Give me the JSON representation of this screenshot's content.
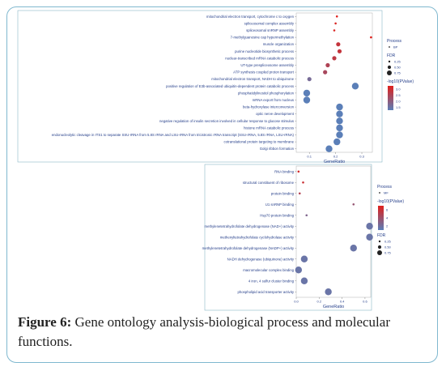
{
  "caption": {
    "label": "Figure 6:",
    "text": "Gene ontology analysis-biological process and molecular functions."
  },
  "chart_data": [
    {
      "type": "scatter",
      "subtype": "dot-plot",
      "panel": "biological-process",
      "xlabel": "GeneRatio",
      "xticks": [
        "0.1",
        "0.2",
        "0.3"
      ],
      "xlim": [
        0.05,
        0.34
      ],
      "terms": [
        {
          "label": "mitochondrial electron transport, cytochrome c to oxygen",
          "ratio": 0.205,
          "size": "small",
          "value": 3.0
        },
        {
          "label": "spliceosomal complex assembly",
          "ratio": 0.2,
          "size": "small",
          "value": 2.9
        },
        {
          "label": "spliceosomal snRNP assembly",
          "ratio": 0.195,
          "size": "small",
          "value": 2.9
        },
        {
          "label": "7-methylguanosine cap hypermethylation",
          "ratio": 0.335,
          "size": "small",
          "value": 3.0
        },
        {
          "label": "muscle organization",
          "ratio": 0.21,
          "size": "medium",
          "value": 2.6
        },
        {
          "label": "purine nucleotide biosynthetic process",
          "ratio": 0.215,
          "size": "medium",
          "value": 2.6
        },
        {
          "label": "nuclear-transcribed mRNA catabolic process",
          "ratio": 0.195,
          "size": "medium",
          "value": 2.5
        },
        {
          "label": "UT-type prespliceosome assembly",
          "ratio": 0.17,
          "size": "medium",
          "value": 2.3
        },
        {
          "label": "ATP synthesis coupled proton transport",
          "ratio": 0.16,
          "size": "medium",
          "value": 2.2
        },
        {
          "label": "mitochondrial electron transport, NADH to ubiquinone",
          "ratio": 0.1,
          "size": "medium",
          "value": 1.5
        },
        {
          "label": "positive regulation of E3b-associated ubiquitin-dependent protein catabolic process",
          "ratio": 0.275,
          "size": "large",
          "value": 1.1
        },
        {
          "label": "phosphatidylinositol phosphorylation",
          "ratio": 0.09,
          "size": "large",
          "value": 1.1
        },
        {
          "label": "mRNA export from nucleus",
          "ratio": 0.09,
          "size": "large",
          "value": 1.1
        },
        {
          "label": "beta-hydroxylase interconversion",
          "ratio": 0.215,
          "size": "large",
          "value": 1.1
        },
        {
          "label": "optic nerve development",
          "ratio": 0.215,
          "size": "large",
          "value": 1.1
        },
        {
          "label": "negative regulation of insulin secretion involved in cellular response to glucose stimulus",
          "ratio": 0.215,
          "size": "large",
          "value": 1.1
        },
        {
          "label": "histone mRNA catabolic process",
          "ratio": 0.215,
          "size": "large",
          "value": 1.1
        },
        {
          "label": "endonucleolytic cleavage in ITS1 to separate SSU-rRNA from 5.8S rRNA and LSU-rRNA from tricistronic rRNA transcript (SSU-rRNA, 5.8S rRNA, LSU-rRNA)",
          "ratio": 0.215,
          "size": "large",
          "value": 1.1
        },
        {
          "label": "cotranslational protein targeting to membrane",
          "ratio": 0.205,
          "size": "large",
          "value": 1.1
        },
        {
          "label": "Golgi ribbon formation",
          "ratio": 0.175,
          "size": "large",
          "value": 1.1
        }
      ],
      "legend": {
        "process_title": "Process",
        "process_item": "BP",
        "fdr_title": "FDR",
        "fdr_items": [
          "0.25",
          "0.50",
          "0.75"
        ],
        "color_title": "-log10(PValue)",
        "color_ticks": [
          "3.0",
          "2.5",
          "2.0",
          "1.5"
        ],
        "color_range": [
          1.1,
          3.0
        ],
        "color_low": "#5b7fb8",
        "color_high": "#e0201b"
      }
    },
    {
      "type": "scatter",
      "subtype": "dot-plot",
      "panel": "molecular-function",
      "xlabel": "GeneRatio",
      "xticks": [
        "0.0",
        "0.2",
        "0.4",
        "0.6"
      ],
      "xlim": [
        0.0,
        0.65
      ],
      "terms": [
        {
          "label": "RNA binding",
          "ratio": 0.02,
          "size": "small",
          "value": 6.0
        },
        {
          "label": "structural constituent of ribosome",
          "ratio": 0.06,
          "size": "small",
          "value": 5.6
        },
        {
          "label": "protein binding",
          "ratio": 0.03,
          "size": "small",
          "value": 4.6
        },
        {
          "label": "U1 snRNP binding",
          "ratio": 0.5,
          "size": "small",
          "value": 3.4
        },
        {
          "label": "Hsp70 protein binding",
          "ratio": 0.09,
          "size": "small",
          "value": 2.5
        },
        {
          "label": "methylenetetrahydrofolate dehydrogenase (NAD+) activity",
          "ratio": 0.64,
          "size": "large",
          "value": 1.6
        },
        {
          "label": "methenyltetrahydrofolate cyclohydrolase activity",
          "ratio": 0.64,
          "size": "large",
          "value": 1.6
        },
        {
          "label": "methylenetetrahydrofolate dehydrogenase (NADP+) activity",
          "ratio": 0.5,
          "size": "large",
          "value": 1.6
        },
        {
          "label": "NADH dehydrogenase (ubiquinone) activity",
          "ratio": 0.07,
          "size": "large",
          "value": 1.6
        },
        {
          "label": "macromolecular complex binding",
          "ratio": 0.02,
          "size": "large",
          "value": 1.6
        },
        {
          "label": "4 iron, 4 sulfur cluster binding",
          "ratio": 0.07,
          "size": "large",
          "value": 1.6
        },
        {
          "label": "phospholipid acid transporter activity",
          "ratio": 0.28,
          "size": "large",
          "value": 1.6
        }
      ],
      "legend": {
        "process_title": "Process",
        "process_item": "MF",
        "color_title": "-log10(PValue)",
        "color_ticks": [
          "6",
          "4",
          "2"
        ],
        "color_range": [
          1.0,
          6.5
        ],
        "color_low": "#5b7fb8",
        "color_high": "#e0201b",
        "fdr_title": "FDR",
        "fdr_items": [
          "0.25",
          "0.50",
          "0.75"
        ]
      }
    }
  ]
}
